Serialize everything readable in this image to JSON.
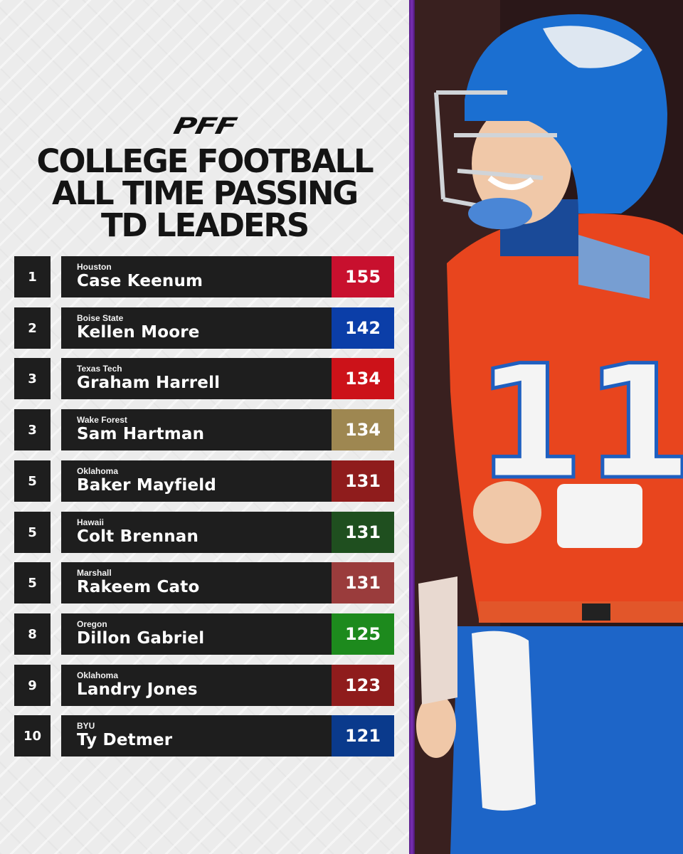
{
  "logo": "PFF",
  "title": {
    "lines": [
      "COLLEGE FOOTBALL",
      "ALL TIME PASSING",
      "TD LEADERS"
    ]
  },
  "leaders": [
    {
      "rank": "1",
      "school": "Houston",
      "name": "Case Keenum",
      "tds": "155",
      "color": "#c8102e"
    },
    {
      "rank": "2",
      "school": "Boise State",
      "name": "Kellen Moore",
      "tds": "142",
      "color": "#0b3ea8"
    },
    {
      "rank": "3",
      "school": "Texas Tech",
      "name": "Graham Harrell",
      "tds": "134",
      "color": "#cc1219"
    },
    {
      "rank": "3",
      "school": "Wake Forest",
      "name": "Sam Hartman",
      "tds": "134",
      "color": "#9e8751"
    },
    {
      "rank": "5",
      "school": "Oklahoma",
      "name": "Baker Mayfield",
      "tds": "131",
      "color": "#8f1c1c"
    },
    {
      "rank": "5",
      "school": "Hawaii",
      "name": "Colt Brennan",
      "tds": "131",
      "color": "#1f4f1f"
    },
    {
      "rank": "5",
      "school": "Marshall",
      "name": "Rakeem Cato",
      "tds": "131",
      "color": "#9a3c3c"
    },
    {
      "rank": "8",
      "school": "Oregon",
      "name": "Dillon Gabriel",
      "tds": "125",
      "color": "#1d8a1d"
    },
    {
      "rank": "9",
      "school": "Oklahoma",
      "name": "Landry Jones",
      "tds": "123",
      "color": "#8f1c1c"
    },
    {
      "rank": "10",
      "school": "BYU",
      "name": "Ty Detmer",
      "tds": "121",
      "color": "#0a3a8c"
    }
  ],
  "photo": {
    "jersey_number": "11"
  },
  "colors": {
    "divider": "#6a28a0",
    "jersey": "#e8451e",
    "helmet": "#1b6fd1",
    "box": "#1e1e1e"
  }
}
